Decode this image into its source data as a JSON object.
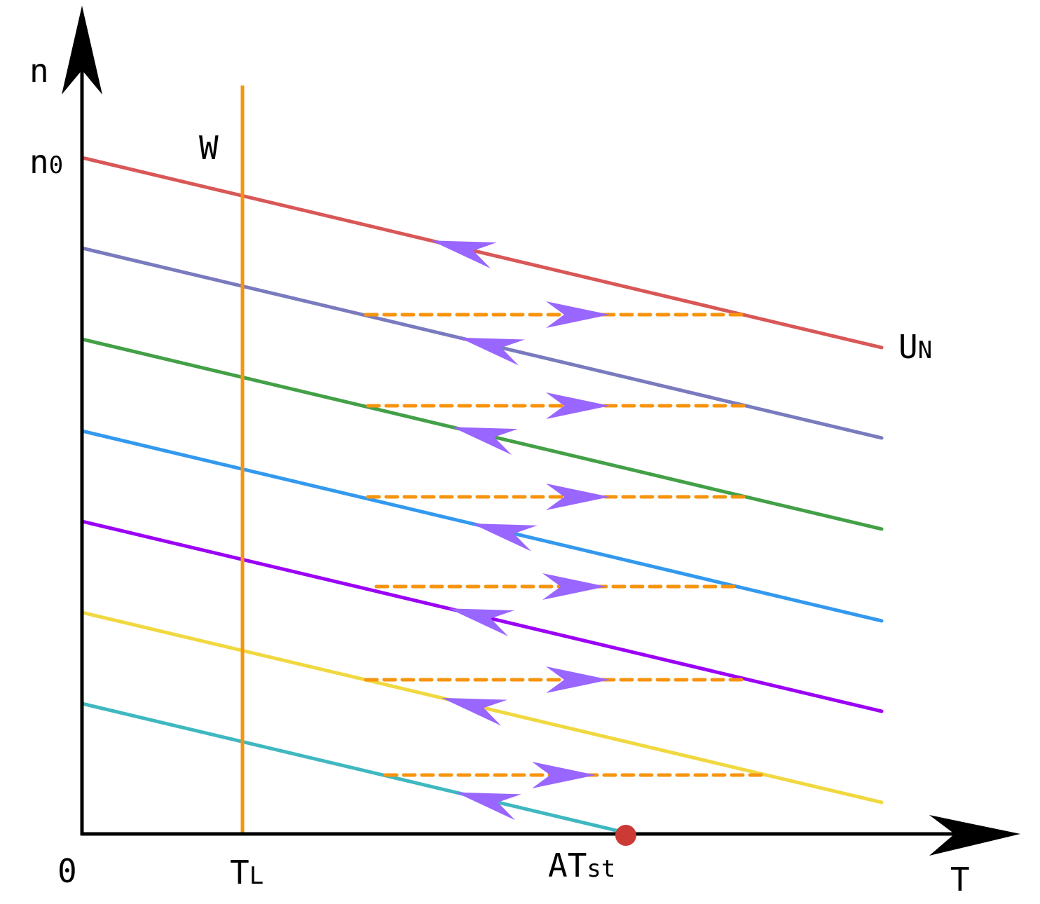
{
  "labels": {
    "y_axis": "n",
    "n0_main": "n",
    "n0_sub": "0",
    "w_line": "W",
    "un_main": "U",
    "un_sub": "N",
    "origin": "0",
    "tl_main": "T",
    "tl_sub": "L",
    "atst_main": "AT",
    "atst_sub": "st",
    "x_axis": "T"
  },
  "colors": {
    "axis": "#000000",
    "w_line": "#f7940f",
    "dashed": "#f7940f",
    "arrow": "#9966ff",
    "point": "#cc3a35",
    "curves": [
      "#d95757",
      "#7a7abf",
      "#43a047",
      "#3399ee",
      "#9b00f5",
      "#f0d840",
      "#3fb8c0"
    ]
  }
}
